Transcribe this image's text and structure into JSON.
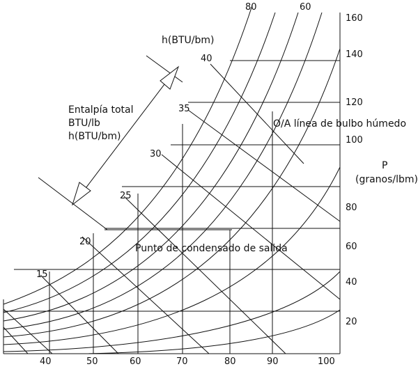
{
  "diagram": {
    "x_ticks": [
      "40",
      "50",
      "60",
      "70",
      "80",
      "90",
      "100"
    ],
    "y_ticks": [
      "20",
      "40",
      "60",
      "80",
      "100",
      "120",
      "140",
      "160"
    ],
    "top_ticks": [
      "80",
      "60"
    ],
    "enthalpy_ticks": [
      "15",
      "20",
      "25",
      "30",
      "35",
      "40"
    ],
    "y_axis_label": {
      "line1": "P",
      "line2": "(granos/lbm)"
    },
    "enthalpy_axis_label": "h(BTU/bm)",
    "enthalpy_arrow_label": {
      "line1": "Entalpía total",
      "line2": "BTU/lb",
      "line3": "h(BTU/bm)"
    },
    "wet_bulb_label": "O/A línea de bulbo húmedo",
    "dew_point_label": "Punto de condensado de salida"
  }
}
